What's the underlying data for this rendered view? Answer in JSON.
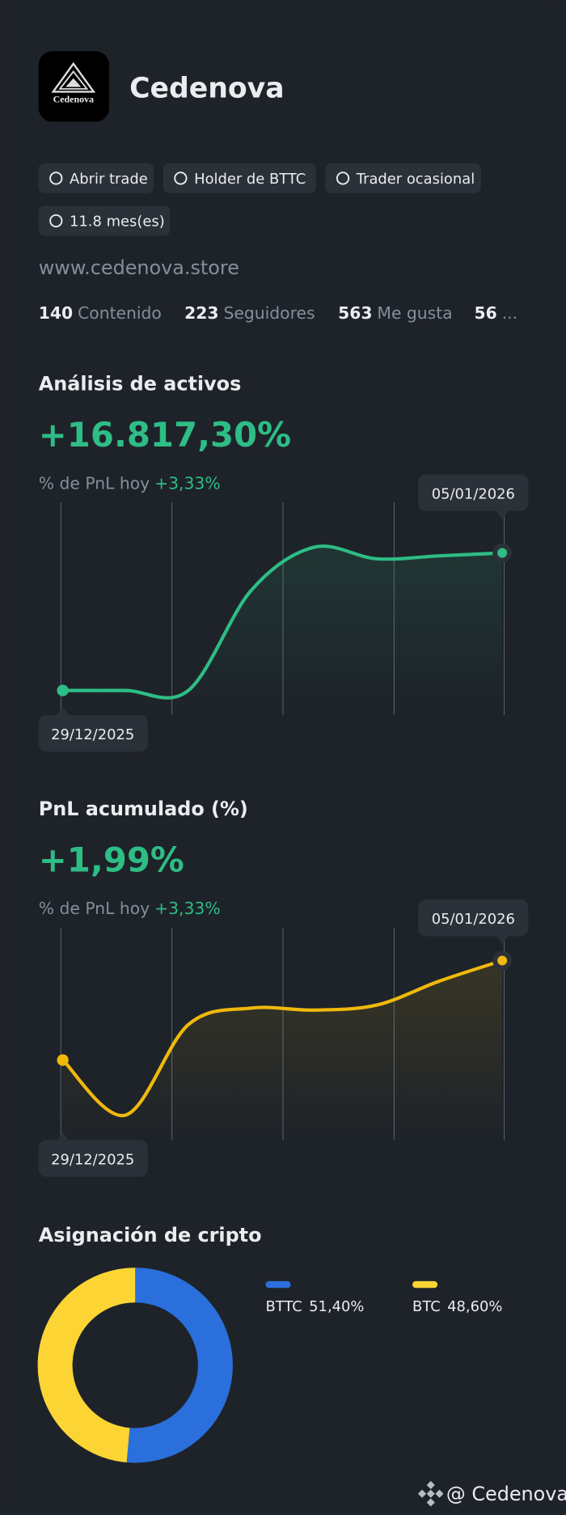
{
  "profile": {
    "name": "Cedenova",
    "logo_text": "Cedenova",
    "badges": [
      "Abrir trade",
      "Holder de BTTC",
      "Trader ocasional",
      "11.8 mes(es)"
    ],
    "website": "www.cedenova.store",
    "stats": [
      {
        "value": 140,
        "label": "Contenido"
      },
      {
        "value": 223,
        "label": "Seguidores"
      },
      {
        "value": 563,
        "label": "Me gusta"
      },
      {
        "value": 56,
        "label": "..."
      }
    ]
  },
  "chart_data": [
    {
      "type": "line",
      "title": "Análisis de activos",
      "headline": "+16.817,30%",
      "subtitle": "% de PnL hoy",
      "subtitle_value": "+3,33%",
      "categories": [
        "29/12/2025",
        null,
        null,
        null,
        null,
        null,
        null,
        "05/01/2026"
      ],
      "values": [
        0,
        0,
        0,
        12230,
        17520,
        16110,
        16465,
        16817.3
      ],
      "color": "#2ebd85",
      "ylim": [
        -3000,
        23000
      ]
    },
    {
      "type": "line",
      "title": "PnL acumulado (%)",
      "headline": "+1,99%",
      "subtitle": "% de PnL hoy",
      "subtitle_value": "+3,33%",
      "categories": [
        "29/12/2025",
        null,
        null,
        null,
        null,
        null,
        null,
        "05/01/2026"
      ],
      "values": [
        0,
        -1.1,
        0.71,
        1.04,
        1.0,
        1.1,
        1.58,
        1.99
      ],
      "color": "#f0b90b",
      "ylim": [
        -1.6,
        2.65
      ]
    },
    {
      "type": "donut",
      "title": "Asignación de cripto",
      "categories": [
        "BTTC",
        "BTC"
      ],
      "values": [
        51.4,
        48.6
      ],
      "value_labels": [
        "51,40%",
        "48,60%"
      ],
      "colors": [
        "#2a6fdb",
        "#fcd535"
      ]
    }
  ],
  "footer": {
    "handle": "@ Cedenova"
  }
}
